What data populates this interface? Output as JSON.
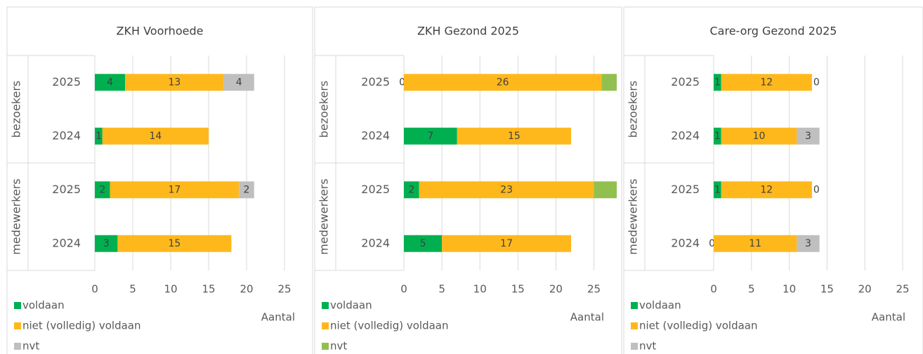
{
  "chart_data": [
    {
      "type": "stacked-barh",
      "title": "ZKH Voorhoede",
      "categories": [
        "2025",
        "2024",
        "2025",
        "2024"
      ],
      "groups": [
        "bezoekers",
        "medewerkers"
      ],
      "series": [
        {
          "name": "voldaan",
          "color": "#00b050",
          "values": [
            4,
            1,
            2,
            3
          ]
        },
        {
          "name": "niet (volledig) voldaan",
          "color": "#ffb81c",
          "values": [
            13,
            14,
            17,
            15
          ]
        },
        {
          "name": "nvt",
          "color": "#bfbfbf",
          "values": [
            4,
            null,
            2,
            null
          ]
        }
      ],
      "xlim": [
        0,
        25
      ],
      "xticks": [
        0,
        5,
        10,
        15,
        20,
        25
      ],
      "xlabel": "Aantal",
      "grid": true
    },
    {
      "type": "stacked-barh",
      "title": "ZKH Gezond 2025",
      "categories": [
        "2025",
        "2024",
        "2025",
        "2024"
      ],
      "groups": [
        "bezoekers",
        "medewerkers"
      ],
      "series": [
        {
          "name": "voldaan",
          "color": "#00b050",
          "values": [
            0,
            7,
            2,
            5
          ]
        },
        {
          "name": "niet (volledig) voldaan",
          "color": "#ffb81c",
          "values": [
            26,
            15,
            23,
            17
          ]
        },
        {
          "name": "nvt",
          "color": "#92c050",
          "values": [
            2,
            null,
            3,
            null
          ],
          "data_labels": false
        }
      ],
      "xlim": [
        0,
        28
      ],
      "xticks": [
        0,
        5,
        10,
        15,
        20,
        25
      ],
      "xlabel": "Aantal",
      "grid": true
    },
    {
      "type": "stacked-barh",
      "title": "Care-org Gezond 2025",
      "categories": [
        "2025",
        "2024",
        "2025",
        "2024"
      ],
      "groups": [
        "bezoekers",
        "medewerkers"
      ],
      "series": [
        {
          "name": "voldaan",
          "color": "#00b050",
          "values": [
            1,
            1,
            1,
            0
          ]
        },
        {
          "name": "niet (volledig) voldaan",
          "color": "#ffb81c",
          "values": [
            12,
            10,
            12,
            11
          ]
        },
        {
          "name": "nvt",
          "color": "#bfbfbf",
          "values": [
            0,
            3,
            0,
            3
          ]
        }
      ],
      "xlim": [
        0,
        25
      ],
      "xticks": [
        0,
        5,
        10,
        15,
        20,
        25
      ],
      "xlabel": "Aantal",
      "grid": true
    }
  ]
}
